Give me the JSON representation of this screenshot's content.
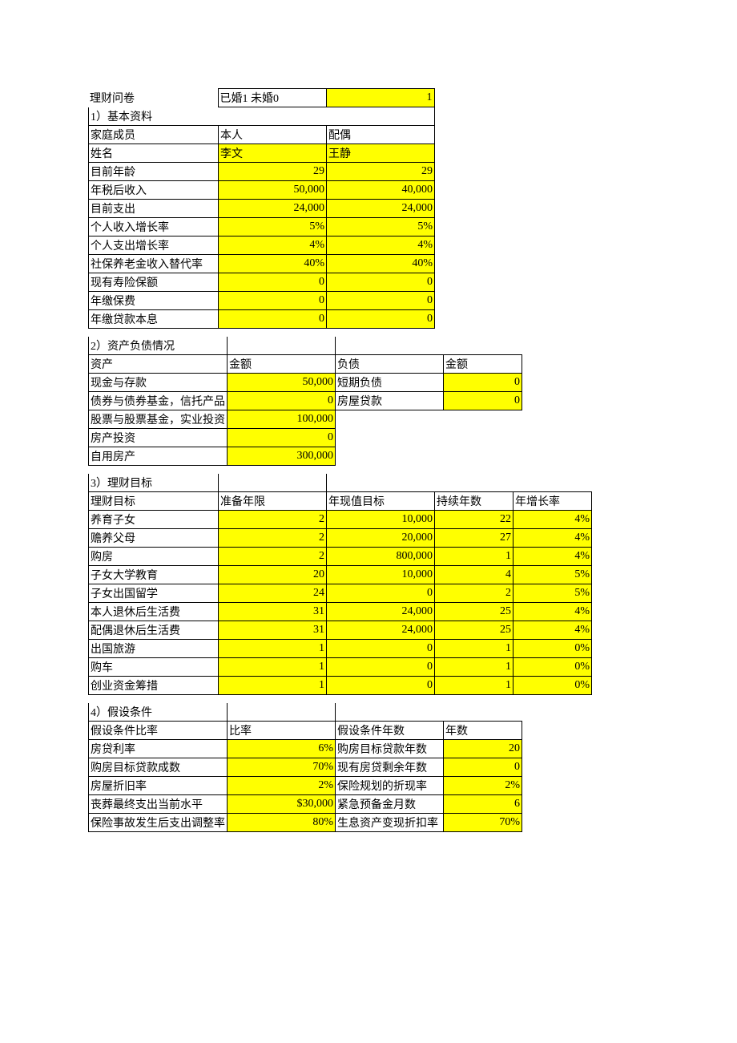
{
  "top": {
    "title": "理财问卷",
    "marital_label": "已婚1   未婚0",
    "marital_value": "1"
  },
  "s1": {
    "heading": "1）基本资料",
    "row_member": {
      "a": "家庭成员",
      "b": "本人",
      "c": "配偶"
    },
    "row_name": {
      "a": "姓名",
      "b": "李文",
      "c": "王静"
    },
    "rows": [
      {
        "a": "目前年龄",
        "b": "29",
        "c": "29"
      },
      {
        "a": "年税后收入",
        "b": "50,000",
        "c": "40,000"
      },
      {
        "a": "目前支出",
        "b": "24,000",
        "c": "24,000"
      },
      {
        "a": "个人收入增长率",
        "b": "5%",
        "c": "5%"
      },
      {
        "a": "个人支出增长率",
        "b": "4%",
        "c": "4%"
      },
      {
        "a": "社保养老金收入替代率",
        "b": "40%",
        "c": "40%"
      },
      {
        "a": "现有寿险保额",
        "b": "0",
        "c": "0"
      },
      {
        "a": "年缴保费",
        "b": "0",
        "c": "0"
      },
      {
        "a": "年缴贷款本息",
        "b": "0",
        "c": "0"
      }
    ]
  },
  "s2": {
    "heading": "2）资产负债情况",
    "header": {
      "a": "资产",
      "b": "金额",
      "c": "负债",
      "d": "金额"
    },
    "rows": [
      {
        "a": "现金与存款",
        "b": "50,000",
        "c": "短期负债",
        "d": "0"
      },
      {
        "a": "债券与债券基金，信托产品",
        "b": "0",
        "c": "房屋贷款",
        "d": "0"
      },
      {
        "a": "股票与股票基金，实业投资",
        "b": "100,000"
      },
      {
        "a": "房产投资",
        "b": "0"
      },
      {
        "a": "自用房产",
        "b": "300,000"
      }
    ]
  },
  "s3": {
    "heading": "3）理财目标",
    "header": {
      "a": "理财目标",
      "b": "准备年限",
      "c": "年现值目标",
      "d": "持续年数",
      "e": "年增长率"
    },
    "rows": [
      {
        "a": "养育子女",
        "b": "2",
        "c": "10,000",
        "d": "22",
        "e": "4%"
      },
      {
        "a": "赡养父母",
        "b": "2",
        "c": "20,000",
        "d": "27",
        "e": "4%"
      },
      {
        "a": "购房",
        "b": "2",
        "c": "800,000",
        "d": "1",
        "e": "4%"
      },
      {
        "a": "子女大学教育",
        "b": "20",
        "c": "10,000",
        "d": "4",
        "e": "5%"
      },
      {
        "a": "子女出国留学",
        "b": "24",
        "c": "0",
        "d": "2",
        "e": "5%"
      },
      {
        "a": "本人退休后生活费",
        "b": "31",
        "c": "24,000",
        "d": "25",
        "e": "4%"
      },
      {
        "a": "配偶退休后生活费",
        "b": "31",
        "c": "24,000",
        "d": "25",
        "e": "4%"
      },
      {
        "a": "出国旅游",
        "b": "1",
        "c": "0",
        "d": "1",
        "e": "0%"
      },
      {
        "a": "购车",
        "b": "1",
        "c": "0",
        "d": "1",
        "e": "0%"
      },
      {
        "a": "创业资金筹措",
        "b": "1",
        "c": "0",
        "d": "1",
        "e": "0%"
      }
    ]
  },
  "s4": {
    "heading": "4）假设条件",
    "header": {
      "a": "假设条件比率",
      "b": "比率",
      "c": "假设条件年数",
      "d": "年数"
    },
    "rows": [
      {
        "a": "房贷利率",
        "b": "6%",
        "c": "购房目标贷款年数",
        "d": "20"
      },
      {
        "a": "购房目标贷款成数",
        "b": "70%",
        "c": "现有房贷剩余年数",
        "d": "0"
      },
      {
        "a": "房屋折旧率",
        "b": "2%",
        "c": "保险规划的折现率",
        "d": "2%"
      },
      {
        "a": "丧葬最终支出当前水平",
        "b": "$30,000",
        "c": "紧急预备金月数",
        "d": "6"
      },
      {
        "a": "保险事故发生后支出调整率",
        "b": "80%",
        "c": "生息资产变现折扣率",
        "d": "70%"
      }
    ]
  }
}
